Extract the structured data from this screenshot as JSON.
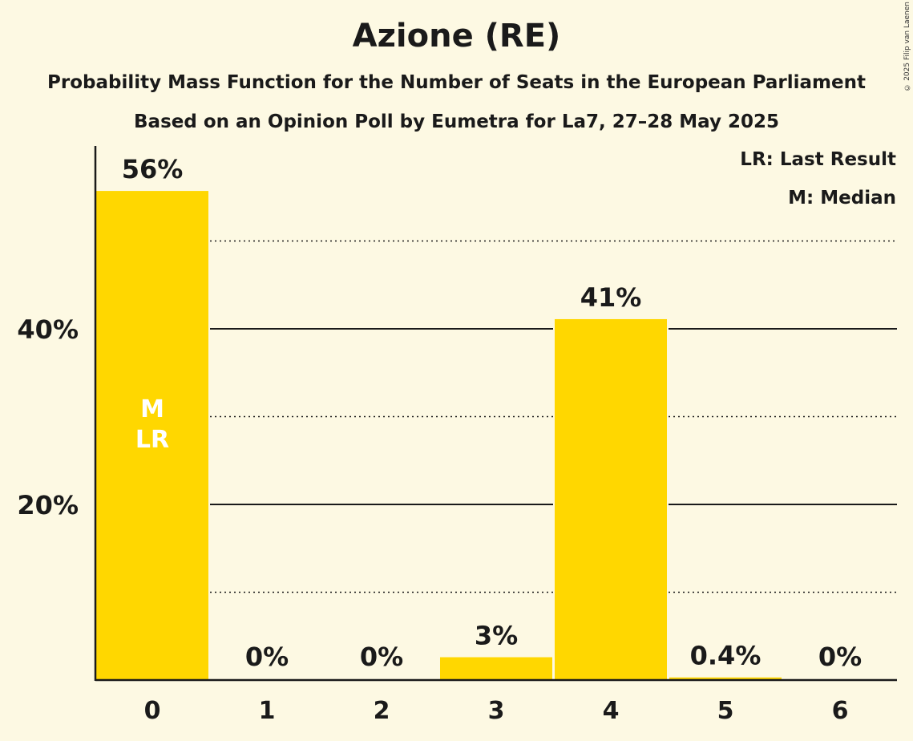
{
  "title": "Azione (RE)",
  "subtitle": "Probability Mass Function for the Number of Seats in the European Parliament",
  "subtitle2": "Based on an Opinion Poll by Eumetra for La7, 27–28 May 2025",
  "copyright": "© 2025 Filip van Laenen",
  "legend": {
    "lr": "LR: Last Result",
    "m": "M: Median"
  },
  "colors": {
    "bar": "#ffd700",
    "background": "#fdf9e3",
    "text": "#1a1a1a"
  },
  "chart_data": {
    "type": "bar",
    "title": "Azione (RE)",
    "subtitle": "Probability Mass Function for the Number of Seats in the European Parliament",
    "xlabel": "",
    "ylabel": "",
    "categories": [
      "0",
      "1",
      "2",
      "3",
      "4",
      "5",
      "6"
    ],
    "values": [
      56,
      0,
      0,
      3,
      41,
      0.4,
      0
    ],
    "value_labels": [
      "56%",
      "0%",
      "0%",
      "3%",
      "41%",
      "0.4%",
      "0%"
    ],
    "bar_heights_pct": [
      55.7,
      0,
      0,
      2.6,
      41.1,
      0.3,
      0
    ],
    "yticks": [
      "20%",
      "40%"
    ],
    "ylim": [
      0,
      60
    ],
    "gridlines": {
      "solid": [
        20,
        40
      ],
      "dotted": [
        10,
        30,
        50
      ]
    },
    "annotations": [
      {
        "category": "0",
        "text": "M"
      },
      {
        "category": "0",
        "text": "LR"
      }
    ],
    "legend": [
      "LR: Last Result",
      "M: Median"
    ],
    "grid": true
  }
}
